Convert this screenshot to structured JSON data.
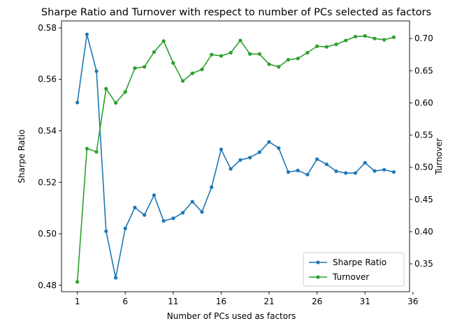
{
  "chart_data": {
    "type": "line",
    "title": "Sharpe Ratio and Turnover with respect to number of PCs selected as factors",
    "xlabel": "Number of PCs used as factors",
    "ylabel_left": "Sharpe Ratio",
    "ylabel_right": "Turnover",
    "xlim": [
      -0.65,
      35.65
    ],
    "ylim_left": [
      0.4775,
      0.5827
    ],
    "ylim_right": [
      0.3067,
      0.7273
    ],
    "x_ticks": [
      1,
      6,
      11,
      16,
      21,
      26,
      31,
      36
    ],
    "y_ticks_left": [
      0.48,
      0.5,
      0.52,
      0.54,
      0.56,
      0.58
    ],
    "y_ticks_right": [
      0.35,
      0.4,
      0.45,
      0.5,
      0.55,
      0.6,
      0.65,
      0.7
    ],
    "legend_position": "lower-right",
    "x": [
      1,
      2,
      3,
      4,
      5,
      6,
      7,
      8,
      9,
      10,
      11,
      12,
      13,
      14,
      15,
      16,
      17,
      18,
      19,
      20,
      21,
      22,
      23,
      24,
      25,
      26,
      27,
      28,
      29,
      30,
      31,
      32,
      33,
      34
    ],
    "series": [
      {
        "name": "Sharpe Ratio",
        "axis": "left",
        "color": "#1f77b4",
        "values": [
          0.551,
          0.5775,
          0.5632,
          0.501,
          0.4829,
          0.5021,
          0.5102,
          0.5073,
          0.515,
          0.505,
          0.506,
          0.5082,
          0.5125,
          0.5085,
          0.5181,
          0.5328,
          0.5252,
          0.5287,
          0.5296,
          0.5317,
          0.5357,
          0.5333,
          0.524,
          0.5246,
          0.523,
          0.529,
          0.527,
          0.5243,
          0.5236,
          0.5236,
          0.5276,
          0.5244,
          0.5249,
          0.524
        ]
      },
      {
        "name": "Turnover",
        "axis": "right",
        "color": "#2ca02c",
        "values": [
          0.322,
          0.529,
          0.524,
          0.622,
          0.6,
          0.617,
          0.654,
          0.656,
          0.679,
          0.696,
          0.662,
          0.634,
          0.646,
          0.652,
          0.675,
          0.673,
          0.678,
          0.697,
          0.676,
          0.676,
          0.66,
          0.656,
          0.667,
          0.669,
          0.678,
          0.688,
          0.687,
          0.691,
          0.697,
          0.703,
          0.704,
          0.7,
          0.698,
          0.702
        ]
      }
    ]
  }
}
